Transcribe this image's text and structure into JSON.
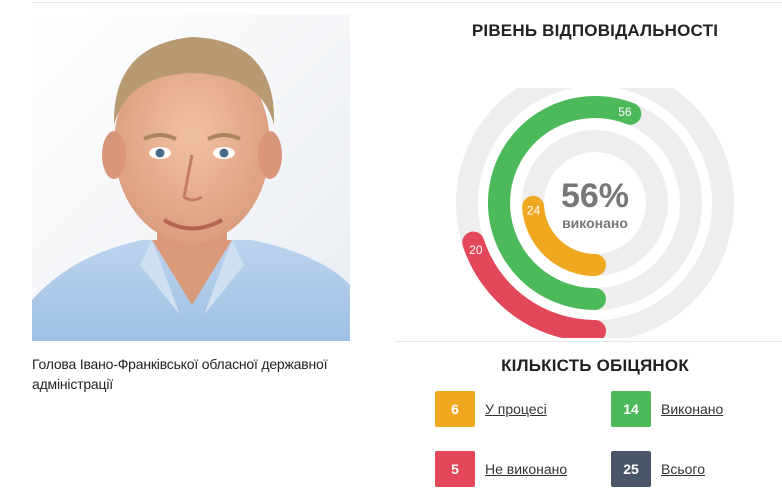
{
  "caption": "Голова Івано-Франківської обласної державної адміністрації",
  "responsibility": {
    "title": "РІВЕНЬ ВІДПОВІДАЛЬНОСТІ",
    "percent_text": "56%",
    "percent_caption": "виконано",
    "rings": [
      {
        "label": "56",
        "fraction": 0.56,
        "color": "#4cba5a"
      },
      {
        "label": "24",
        "fraction": 0.24,
        "color": "#f0a820"
      },
      {
        "label": "20",
        "fraction": 0.2,
        "color": "#e2475a"
      }
    ],
    "track_color": "#eeeeee"
  },
  "promises": {
    "title": "КІЛЬКІСТЬ ОБІЦЯНОК",
    "items": [
      {
        "count": "6",
        "label": "У процесі",
        "color": "#f0a820"
      },
      {
        "count": "14",
        "label": "Виконано",
        "color": "#4cba5a"
      },
      {
        "count": "5",
        "label": "Не виконано",
        "color": "#e2475a"
      },
      {
        "count": "25",
        "label": "Всього",
        "color": "#4a5567"
      }
    ]
  }
}
